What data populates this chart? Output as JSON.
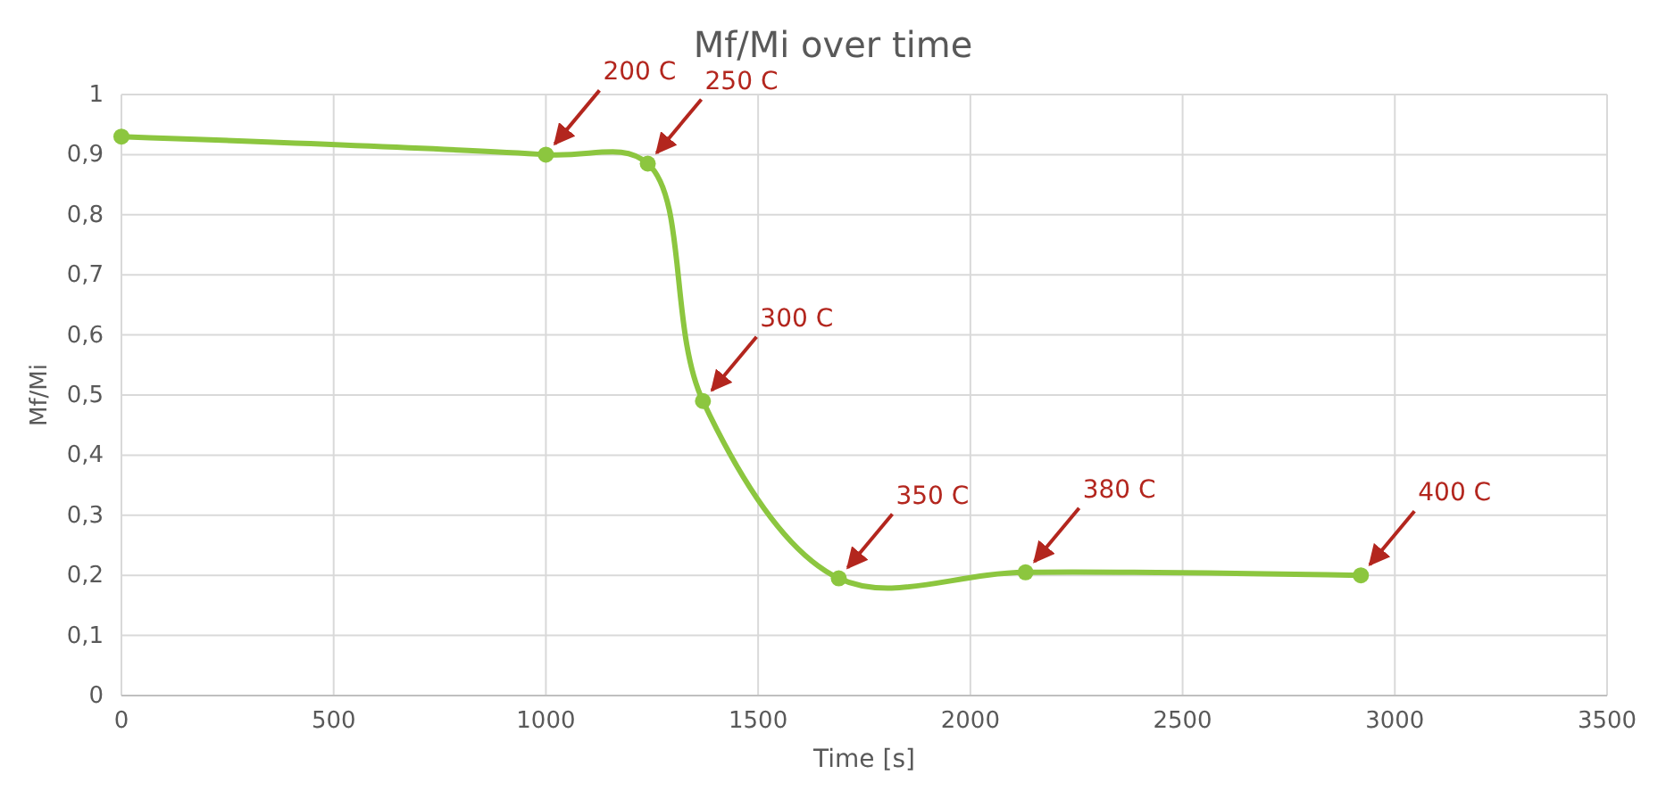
{
  "chart_data": {
    "type": "line",
    "title": "Mf/Mi over time",
    "xlabel": "Time [s]",
    "ylabel": "Mf/Mi",
    "x": [
      0,
      1000,
      1240,
      1370,
      1690,
      2130,
      2920
    ],
    "series": [
      {
        "color": "#8cc63f",
        "values": [
          0.93,
          0.9,
          0.885,
          0.49,
          0.195,
          0.205,
          0.2
        ]
      }
    ],
    "xlim": [
      0,
      3500
    ],
    "xticks": [
      0,
      500,
      1000,
      1500,
      2000,
      2500,
      3000,
      3500
    ],
    "ylim": [
      0,
      1
    ],
    "yticks": [
      {
        "value": 0,
        "label": "0"
      },
      {
        "value": 0.1,
        "label": "0,1"
      },
      {
        "value": 0.2,
        "label": "0,2"
      },
      {
        "value": 0.3,
        "label": "0,3"
      },
      {
        "value": 0.4,
        "label": "0,4"
      },
      {
        "value": 0.5,
        "label": "0,5"
      },
      {
        "value": 0.6,
        "label": "0,6"
      },
      {
        "value": 0.7,
        "label": "0,7"
      },
      {
        "value": 0.8,
        "label": "0,8"
      },
      {
        "value": 0.9,
        "label": "0,9"
      },
      {
        "value": 1,
        "label": "1"
      }
    ],
    "grid": true,
    "marker": "circle",
    "line_style": "solid",
    "annotations": [
      {
        "text": "200 C",
        "x": 1000,
        "y": 0.9
      },
      {
        "text": "250 C",
        "x": 1240,
        "y": 0.885
      },
      {
        "text": "300 C",
        "x": 1370,
        "y": 0.49
      },
      {
        "text": "350 C",
        "x": 1690,
        "y": 0.195
      },
      {
        "text": "380 C",
        "x": 2130,
        "y": 0.205
      },
      {
        "text": "400 C",
        "x": 2920,
        "y": 0.2
      }
    ]
  }
}
